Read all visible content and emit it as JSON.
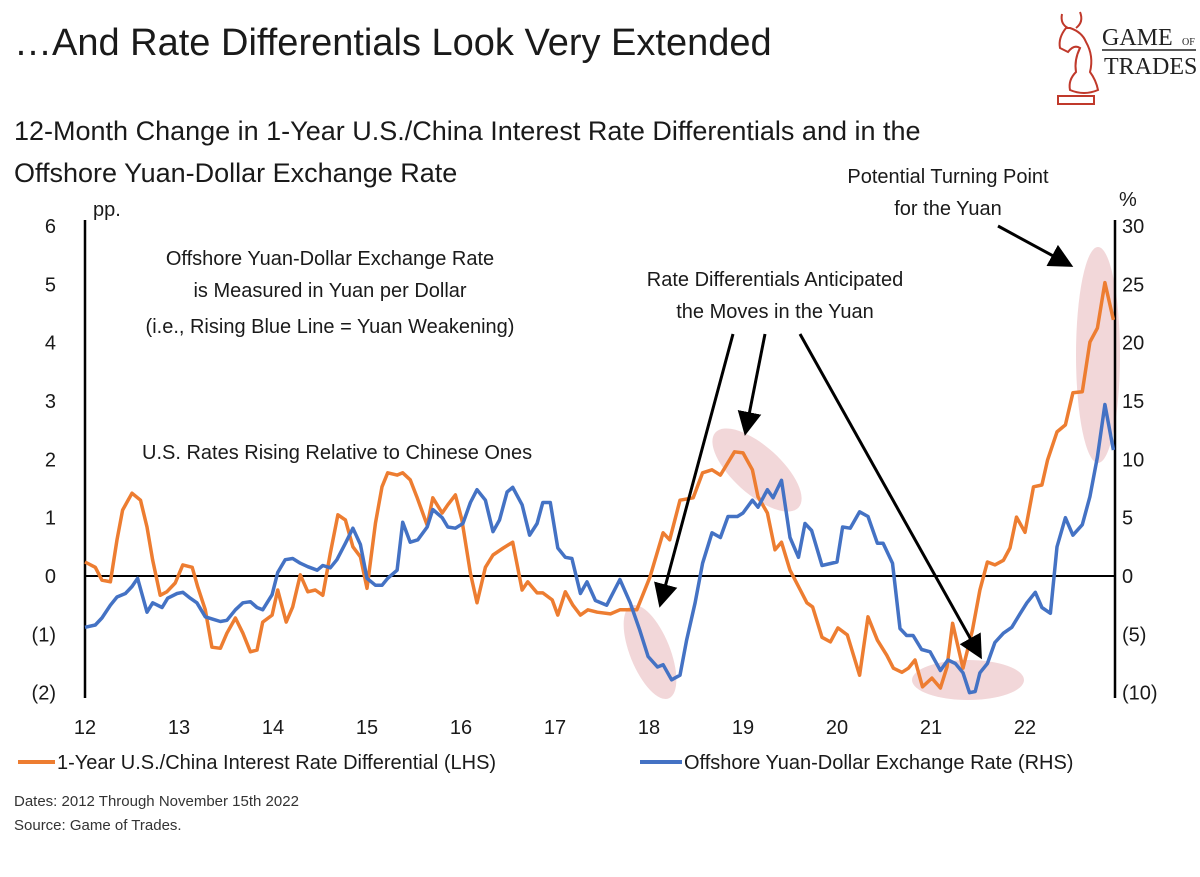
{
  "header": {
    "title": "…And Rate Differentials Look Very Extended",
    "subtitle_line1": "12-Month Change in 1-Year U.S./China Interest Rate Differentials and in the",
    "subtitle_line2": "Offshore Yuan-Dollar Exchange Rate",
    "logo": {
      "line1": "GAME",
      "of": "OF",
      "line2": "TRADES",
      "color": "#c0392b"
    }
  },
  "footer": {
    "dates": "Dates: 2012 Through November 15th 2022",
    "source": "Source: Game of Trades."
  },
  "chart_data": {
    "type": "line",
    "title": "12-Month Change in 1-Year U.S./China Interest Rate Differentials and in the Offshore Yuan-Dollar Exchange Rate",
    "xlabel": "",
    "ylabel_left": "pp.",
    "ylabel_right": "%",
    "xlim": [
      12,
      23
    ],
    "ylim_left": [
      -2,
      6
    ],
    "ylim_right": [
      -10,
      30
    ],
    "x_ticks": [
      "12",
      "13",
      "14",
      "15",
      "16",
      "17",
      "18",
      "19",
      "20",
      "21",
      "22"
    ],
    "y_ticks_left": [
      "6",
      "5",
      "4",
      "3",
      "2",
      "1",
      "0",
      "(1)",
      "(2)"
    ],
    "y_ticks_right": [
      "30",
      "25",
      "20",
      "15",
      "10",
      "5",
      "0",
      "(5)",
      "(10)"
    ],
    "grid": false,
    "legend_position": "bottom",
    "series": [
      {
        "name": "1-Year U.S./China Interest Rate Differential (LHS)",
        "axis": "left",
        "color": "#ed7d31",
        "points": [
          [
            12.0,
            0.24
          ],
          [
            12.11,
            0.15
          ],
          [
            12.18,
            -0.07
          ],
          [
            12.27,
            -0.1
          ],
          [
            12.34,
            0.62
          ],
          [
            12.4,
            1.13
          ],
          [
            12.5,
            1.42
          ],
          [
            12.59,
            1.3
          ],
          [
            12.66,
            0.84
          ],
          [
            12.72,
            0.27
          ],
          [
            12.8,
            -0.33
          ],
          [
            12.87,
            -0.27
          ],
          [
            12.96,
            -0.12
          ],
          [
            13.04,
            0.19
          ],
          [
            13.14,
            0.15
          ],
          [
            13.2,
            -0.19
          ],
          [
            13.28,
            -0.58
          ],
          [
            13.35,
            -1.22
          ],
          [
            13.44,
            -1.24
          ],
          [
            13.51,
            -0.98
          ],
          [
            13.6,
            -0.72
          ],
          [
            13.68,
            -0.98
          ],
          [
            13.76,
            -1.3
          ],
          [
            13.83,
            -1.27
          ],
          [
            13.89,
            -0.79
          ],
          [
            13.99,
            -0.67
          ],
          [
            14.05,
            -0.24
          ],
          [
            14.14,
            -0.79
          ],
          [
            14.21,
            -0.53
          ],
          [
            14.29,
            0.02
          ],
          [
            14.37,
            -0.27
          ],
          [
            14.45,
            -0.24
          ],
          [
            14.53,
            -0.33
          ],
          [
            14.61,
            0.39
          ],
          [
            14.69,
            1.05
          ],
          [
            14.77,
            0.96
          ],
          [
            14.85,
            0.5
          ],
          [
            14.93,
            0.33
          ],
          [
            15.0,
            -0.21
          ],
          [
            15.09,
            0.91
          ],
          [
            15.16,
            1.53
          ],
          [
            15.22,
            1.77
          ],
          [
            15.32,
            1.73
          ],
          [
            15.38,
            1.77
          ],
          [
            15.46,
            1.65
          ],
          [
            15.53,
            1.36
          ],
          [
            15.64,
            0.87
          ],
          [
            15.7,
            1.34
          ],
          [
            15.8,
            1.08
          ],
          [
            15.86,
            1.22
          ],
          [
            15.94,
            1.39
          ],
          [
            16.01,
            0.96
          ],
          [
            16.1,
            0.05
          ],
          [
            16.17,
            -0.46
          ],
          [
            16.26,
            0.15
          ],
          [
            16.34,
            0.36
          ],
          [
            16.45,
            0.48
          ],
          [
            16.55,
            0.58
          ],
          [
            16.65,
            -0.24
          ],
          [
            16.71,
            -0.1
          ],
          [
            16.81,
            -0.29
          ],
          [
            16.87,
            -0.29
          ],
          [
            16.97,
            -0.41
          ],
          [
            17.03,
            -0.67
          ],
          [
            17.11,
            -0.27
          ],
          [
            17.19,
            -0.5
          ],
          [
            17.27,
            -0.67
          ],
          [
            17.35,
            -0.58
          ],
          [
            17.45,
            -0.62
          ],
          [
            17.59,
            -0.65
          ],
          [
            17.69,
            -0.58
          ],
          [
            17.87,
            -0.58
          ],
          [
            18.01,
            -0.02
          ],
          [
            18.15,
            0.74
          ],
          [
            18.22,
            0.62
          ],
          [
            18.33,
            1.3
          ],
          [
            18.47,
            1.34
          ],
          [
            18.57,
            1.77
          ],
          [
            18.67,
            1.82
          ],
          [
            18.76,
            1.73
          ],
          [
            18.91,
            2.13
          ],
          [
            19.0,
            2.11
          ],
          [
            19.1,
            1.82
          ],
          [
            19.16,
            1.36
          ],
          [
            19.26,
            1.08
          ],
          [
            19.34,
            0.45
          ],
          [
            19.41,
            0.58
          ],
          [
            19.5,
            0.1
          ],
          [
            19.61,
            -0.24
          ],
          [
            19.68,
            -0.46
          ],
          [
            19.74,
            -0.53
          ],
          [
            19.84,
            -1.05
          ],
          [
            19.93,
            -1.13
          ],
          [
            20.01,
            -0.89
          ],
          [
            20.11,
            -1.01
          ],
          [
            20.24,
            -1.7
          ],
          [
            20.33,
            -0.7
          ],
          [
            20.43,
            -1.1
          ],
          [
            20.53,
            -1.36
          ],
          [
            20.6,
            -1.58
          ],
          [
            20.69,
            -1.65
          ],
          [
            20.76,
            -1.58
          ],
          [
            20.83,
            -1.44
          ],
          [
            20.91,
            -1.9
          ],
          [
            21.01,
            -1.75
          ],
          [
            21.1,
            -1.92
          ],
          [
            21.17,
            -1.56
          ],
          [
            21.23,
            -0.81
          ],
          [
            21.34,
            -1.58
          ],
          [
            21.44,
            -0.93
          ],
          [
            21.52,
            -0.24
          ],
          [
            21.6,
            0.24
          ],
          [
            21.68,
            0.19
          ],
          [
            21.77,
            0.27
          ],
          [
            21.84,
            0.48
          ],
          [
            21.91,
            1.01
          ],
          [
            22.0,
            0.75
          ],
          [
            22.09,
            1.53
          ],
          [
            22.18,
            1.56
          ],
          [
            22.24,
            1.99
          ],
          [
            22.34,
            2.47
          ],
          [
            22.43,
            2.59
          ],
          [
            22.51,
            3.14
          ],
          [
            22.61,
            3.16
          ],
          [
            22.69,
            4.01
          ],
          [
            22.77,
            4.25
          ],
          [
            22.85,
            5.03
          ],
          [
            22.94,
            4.39
          ]
        ]
      },
      {
        "name": "Offshore Yuan-Dollar Exchange Rate (RHS)",
        "axis": "right",
        "color": "#4472c4",
        "points": [
          [
            12.0,
            -4.4
          ],
          [
            12.11,
            -4.2
          ],
          [
            12.18,
            -3.6
          ],
          [
            12.27,
            -2.5
          ],
          [
            12.34,
            -1.8
          ],
          [
            12.43,
            -1.5
          ],
          [
            12.5,
            -0.9
          ],
          [
            12.56,
            -0.2
          ],
          [
            12.66,
            -3.1
          ],
          [
            12.72,
            -2.3
          ],
          [
            12.82,
            -2.7
          ],
          [
            12.88,
            -1.9
          ],
          [
            12.98,
            -1.5
          ],
          [
            13.04,
            -1.4
          ],
          [
            13.12,
            -1.9
          ],
          [
            13.19,
            -2.3
          ],
          [
            13.28,
            -3.5
          ],
          [
            13.36,
            -3.7
          ],
          [
            13.44,
            -3.9
          ],
          [
            13.51,
            -3.8
          ],
          [
            13.6,
            -2.9
          ],
          [
            13.68,
            -2.3
          ],
          [
            13.76,
            -2.2
          ],
          [
            13.83,
            -2.7
          ],
          [
            13.89,
            -2.9
          ],
          [
            13.99,
            -1.6
          ],
          [
            14.05,
            0.3
          ],
          [
            14.13,
            1.4
          ],
          [
            14.21,
            1.5
          ],
          [
            14.29,
            1.1
          ],
          [
            14.37,
            0.8
          ],
          [
            14.47,
            0.5
          ],
          [
            14.53,
            0.9
          ],
          [
            14.61,
            0.7
          ],
          [
            14.68,
            1.4
          ],
          [
            14.77,
            2.8
          ],
          [
            14.85,
            4.1
          ],
          [
            14.93,
            2.7
          ],
          [
            15.0,
            -0.2
          ],
          [
            15.09,
            -0.8
          ],
          [
            15.16,
            -0.8
          ],
          [
            15.22,
            -0.2
          ],
          [
            15.32,
            0.5
          ],
          [
            15.38,
            4.6
          ],
          [
            15.46,
            2.9
          ],
          [
            15.54,
            3.1
          ],
          [
            15.64,
            4.2
          ],
          [
            15.7,
            5.7
          ],
          [
            15.8,
            5.0
          ],
          [
            15.86,
            4.2
          ],
          [
            15.94,
            4.1
          ],
          [
            16.02,
            4.5
          ],
          [
            16.1,
            6.3
          ],
          [
            16.17,
            7.4
          ],
          [
            16.26,
            6.5
          ],
          [
            16.34,
            3.8
          ],
          [
            16.41,
            4.8
          ],
          [
            16.49,
            7.2
          ],
          [
            16.55,
            7.6
          ],
          [
            16.65,
            6.1
          ],
          [
            16.73,
            3.5
          ],
          [
            16.81,
            4.5
          ],
          [
            16.87,
            6.3
          ],
          [
            16.95,
            6.3
          ],
          [
            17.03,
            2.4
          ],
          [
            17.11,
            1.6
          ],
          [
            17.18,
            1.5
          ],
          [
            17.27,
            -1.5
          ],
          [
            17.34,
            -0.5
          ],
          [
            17.43,
            -2.1
          ],
          [
            17.55,
            -2.5
          ],
          [
            17.69,
            -0.3
          ],
          [
            17.8,
            -2.3
          ],
          [
            17.9,
            -4.6
          ],
          [
            17.99,
            -6.9
          ],
          [
            18.09,
            -7.8
          ],
          [
            18.15,
            -7.6
          ],
          [
            18.24,
            -8.9
          ],
          [
            18.33,
            -8.5
          ],
          [
            18.4,
            -5.5
          ],
          [
            18.49,
            -2.3
          ],
          [
            18.57,
            1.1
          ],
          [
            18.67,
            3.7
          ],
          [
            18.76,
            3.3
          ],
          [
            18.84,
            5.1
          ],
          [
            18.94,
            5.1
          ],
          [
            19.0,
            5.4
          ],
          [
            19.1,
            6.5
          ],
          [
            19.16,
            5.9
          ],
          [
            19.26,
            7.4
          ],
          [
            19.32,
            6.7
          ],
          [
            19.41,
            8.2
          ],
          [
            19.5,
            3.3
          ],
          [
            19.59,
            1.6
          ],
          [
            19.66,
            4.5
          ],
          [
            19.73,
            3.9
          ],
          [
            19.84,
            0.9
          ],
          [
            20.0,
            1.2
          ],
          [
            20.06,
            4.2
          ],
          [
            20.14,
            4.1
          ],
          [
            20.24,
            5.5
          ],
          [
            20.33,
            5.1
          ],
          [
            20.43,
            2.8
          ],
          [
            20.49,
            2.8
          ],
          [
            20.59,
            1.1
          ],
          [
            20.67,
            -4.5
          ],
          [
            20.74,
            -5.1
          ],
          [
            20.81,
            -5.1
          ],
          [
            20.9,
            -6.3
          ],
          [
            20.99,
            -6.5
          ],
          [
            21.1,
            -8.1
          ],
          [
            21.18,
            -7.2
          ],
          [
            21.26,
            -7.5
          ],
          [
            21.34,
            -8.3
          ],
          [
            21.41,
            -10
          ],
          [
            21.47,
            -9.9
          ],
          [
            21.52,
            -8.3
          ],
          [
            21.6,
            -7.5
          ],
          [
            21.68,
            -5.7
          ],
          [
            21.77,
            -4.9
          ],
          [
            21.86,
            -4.4
          ],
          [
            21.95,
            -3.2
          ],
          [
            22.02,
            -2.3
          ],
          [
            22.11,
            -1.4
          ],
          [
            22.18,
            -2.7
          ],
          [
            22.27,
            -3.2
          ],
          [
            22.34,
            2.5
          ],
          [
            22.43,
            5.0
          ],
          [
            22.51,
            3.5
          ],
          [
            22.61,
            4.4
          ],
          [
            22.69,
            6.8
          ],
          [
            22.77,
            10.2
          ],
          [
            22.85,
            14.7
          ],
          [
            22.94,
            10.8
          ]
        ]
      }
    ],
    "annotations": {
      "note_line1": "Offshore Yuan-Dollar Exchange Rate",
      "note_line2": "is Measured in Yuan per Dollar",
      "note_line3": "(i.e., Rising Blue Line = Yuan Weakening)",
      "us_rates": "U.S. Rates Rising Relative to Chinese Ones",
      "anticipated_line1": "Rate Differentials Anticipated",
      "anticipated_line2": "the Moves in the Yuan",
      "turning_line1": "Potential Turning Point",
      "turning_line2": "for the Yuan",
      "highlight_color": "#f2d7d9"
    }
  }
}
